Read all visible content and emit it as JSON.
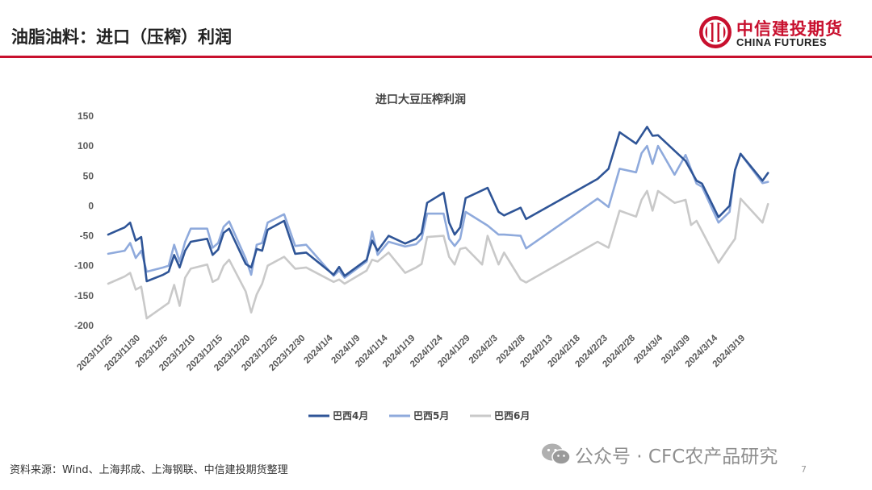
{
  "header": {
    "title": "油脂油料：进口（压榨）利润",
    "logo_cn": "中信建投期货",
    "logo_en": "CHINA FUTURES"
  },
  "footer": {
    "source": "资料来源：Wind、上海邦成、上海钢联、中信建投期货整理",
    "watermark": "公众号 · CFC农产品研究",
    "page_number": "7"
  },
  "colors": {
    "brand": "#c8102e",
    "s1": "#2f5597",
    "s2": "#8faadc",
    "s3": "#c9c9c9"
  },
  "chart_data": {
    "type": "line",
    "title": "进口大豆压榨利润",
    "xlabel": "",
    "ylabel": "",
    "ylim": [
      -200,
      150
    ],
    "yticks": [
      150,
      100,
      50,
      0,
      -50,
      -100,
      -150,
      -200
    ],
    "x_range": [
      "2023/11/25",
      "2024/3/20"
    ],
    "xticks": [
      "2023/11/25",
      "2023/11/30",
      "2023/12/5",
      "2023/12/10",
      "2023/12/15",
      "2023/12/20",
      "2023/12/25",
      "2023/12/30",
      "2024/1/4",
      "2024/1/9",
      "2024/1/14",
      "2024/1/19",
      "2024/1/24",
      "2024/1/29",
      "2024/2/3",
      "2024/2/8",
      "2024/2/13",
      "2024/2/18",
      "2024/2/23",
      "2024/2/28",
      "2024/3/4",
      "2024/3/9",
      "2024/3/14",
      "2024/3/19"
    ],
    "grid": false,
    "legend": "bottom-center",
    "series": [
      {
        "name": "巴西4月",
        "color": "#2f5597",
        "points": [
          [
            "2023/11/25",
            -48
          ],
          [
            "2023/11/27",
            -40
          ],
          [
            "2023/11/28",
            -36
          ],
          [
            "2023/11/29",
            -28
          ],
          [
            "2023/11/30",
            -58
          ],
          [
            "2023/12/1",
            -52
          ],
          [
            "2023/12/2",
            -126
          ],
          [
            "2023/12/5",
            -115
          ],
          [
            "2023/12/6",
            -110
          ],
          [
            "2023/12/7",
            -82
          ],
          [
            "2023/12/8",
            -103
          ],
          [
            "2023/12/9",
            -75
          ],
          [
            "2023/12/10",
            -60
          ],
          [
            "2023/12/13",
            -55
          ],
          [
            "2023/12/14",
            -82
          ],
          [
            "2023/12/15",
            -73
          ],
          [
            "2023/12/16",
            -45
          ],
          [
            "2023/12/17",
            -38
          ],
          [
            "2023/12/20",
            -97
          ],
          [
            "2023/12/21",
            -103
          ],
          [
            "2023/12/22",
            -72
          ],
          [
            "2023/12/23",
            -75
          ],
          [
            "2023/12/24",
            -40
          ],
          [
            "2023/12/27",
            -25
          ],
          [
            "2023/12/29",
            -80
          ],
          [
            "2023/12/31",
            -78
          ],
          [
            "2024/1/5",
            -115
          ],
          [
            "2024/1/6",
            -102
          ],
          [
            "2024/1/7",
            -117
          ],
          [
            "2024/1/11",
            -90
          ],
          [
            "2024/1/12",
            -58
          ],
          [
            "2024/1/13",
            -75
          ],
          [
            "2024/1/15",
            -50
          ],
          [
            "2024/1/18",
            -63
          ],
          [
            "2024/1/20",
            -55
          ],
          [
            "2024/1/21",
            -45
          ],
          [
            "2024/1/22",
            5
          ],
          [
            "2024/1/25",
            22
          ],
          [
            "2024/1/26",
            -28
          ],
          [
            "2024/1/27",
            -48
          ],
          [
            "2024/1/28",
            -36
          ],
          [
            "2024/1/29",
            13
          ],
          [
            "2024/2/2",
            30
          ],
          [
            "2024/2/4",
            -10
          ],
          [
            "2024/2/5",
            -16
          ],
          [
            "2024/2/8",
            -3
          ],
          [
            "2024/2/9",
            -22
          ],
          [
            "2024/2/22",
            45
          ],
          [
            "2024/2/24",
            62
          ],
          [
            "2024/2/26",
            123
          ],
          [
            "2024/2/29",
            104
          ],
          [
            "2024/3/2",
            132
          ],
          [
            "2024/3/3",
            117
          ],
          [
            "2024/3/4",
            118
          ],
          [
            "2024/3/7",
            92
          ],
          [
            "2024/3/9",
            75
          ],
          [
            "2024/3/11",
            42
          ],
          [
            "2024/3/12",
            37
          ],
          [
            "2024/3/15",
            -19
          ],
          [
            "2024/3/17",
            0
          ],
          [
            "2024/3/18",
            60
          ],
          [
            "2024/3/19",
            87
          ],
          [
            "2024/3/23",
            42
          ],
          [
            "2024/3/24",
            55
          ]
        ]
      },
      {
        "name": "巴西5月",
        "color": "#8faadc",
        "points": [
          [
            "2023/11/25",
            -80
          ],
          [
            "2023/11/28",
            -75
          ],
          [
            "2023/11/29",
            -62
          ],
          [
            "2023/11/30",
            -87
          ],
          [
            "2023/12/1",
            -75
          ],
          [
            "2023/12/2",
            -110
          ],
          [
            "2023/12/5",
            -103
          ],
          [
            "2023/12/6",
            -100
          ],
          [
            "2023/12/7",
            -65
          ],
          [
            "2023/12/8",
            -93
          ],
          [
            "2023/12/9",
            -60
          ],
          [
            "2023/12/10",
            -38
          ],
          [
            "2023/12/13",
            -38
          ],
          [
            "2023/12/14",
            -70
          ],
          [
            "2023/12/15",
            -62
          ],
          [
            "2023/12/16",
            -35
          ],
          [
            "2023/12/17",
            -26
          ],
          [
            "2023/12/20",
            -88
          ],
          [
            "2023/12/21",
            -115
          ],
          [
            "2023/12/22",
            -65
          ],
          [
            "2023/12/23",
            -62
          ],
          [
            "2023/12/24",
            -28
          ],
          [
            "2023/12/27",
            -14
          ],
          [
            "2023/12/29",
            -67
          ],
          [
            "2023/12/31",
            -65
          ],
          [
            "2024/1/5",
            -117
          ],
          [
            "2024/1/6",
            -108
          ],
          [
            "2024/1/7",
            -120
          ],
          [
            "2024/1/11",
            -93
          ],
          [
            "2024/1/12",
            -43
          ],
          [
            "2024/1/13",
            -82
          ],
          [
            "2024/1/15",
            -60
          ],
          [
            "2024/1/18",
            -68
          ],
          [
            "2024/1/20",
            -64
          ],
          [
            "2024/1/21",
            -55
          ],
          [
            "2024/1/22",
            -13
          ],
          [
            "2024/1/25",
            -13
          ],
          [
            "2024/1/26",
            -55
          ],
          [
            "2024/1/27",
            -67
          ],
          [
            "2024/1/28",
            -55
          ],
          [
            "2024/1/29",
            -10
          ],
          [
            "2024/2/2",
            -33
          ],
          [
            "2024/2/4",
            -48
          ],
          [
            "2024/2/5",
            -48
          ],
          [
            "2024/2/8",
            -50
          ],
          [
            "2024/2/9",
            -71
          ],
          [
            "2024/2/22",
            12
          ],
          [
            "2024/2/24",
            -2
          ],
          [
            "2024/2/26",
            62
          ],
          [
            "2024/2/29",
            56
          ],
          [
            "2024/3/1",
            88
          ],
          [
            "2024/3/2",
            100
          ],
          [
            "2024/3/3",
            70
          ],
          [
            "2024/3/4",
            100
          ],
          [
            "2024/3/7",
            52
          ],
          [
            "2024/3/9",
            85
          ],
          [
            "2024/3/11",
            37
          ],
          [
            "2024/3/12",
            32
          ],
          [
            "2024/3/15",
            -28
          ],
          [
            "2024/3/17",
            -10
          ],
          [
            "2024/3/18",
            60
          ],
          [
            "2024/3/19",
            87
          ],
          [
            "2024/3/23",
            38
          ],
          [
            "2024/3/24",
            40
          ]
        ]
      },
      {
        "name": "巴西6月",
        "color": "#c9c9c9",
        "points": [
          [
            "2023/11/25",
            -130
          ],
          [
            "2023/11/28",
            -118
          ],
          [
            "2023/11/29",
            -112
          ],
          [
            "2023/11/30",
            -140
          ],
          [
            "2023/12/1",
            -135
          ],
          [
            "2023/12/2",
            -188
          ],
          [
            "2023/12/6",
            -162
          ],
          [
            "2023/12/7",
            -132
          ],
          [
            "2023/12/8",
            -167
          ],
          [
            "2023/12/9",
            -120
          ],
          [
            "2023/12/10",
            -105
          ],
          [
            "2023/12/13",
            -98
          ],
          [
            "2023/12/14",
            -127
          ],
          [
            "2023/12/15",
            -122
          ],
          [
            "2023/12/16",
            -100
          ],
          [
            "2023/12/17",
            -90
          ],
          [
            "2023/12/20",
            -143
          ],
          [
            "2023/12/21",
            -178
          ],
          [
            "2023/12/22",
            -148
          ],
          [
            "2023/12/23",
            -130
          ],
          [
            "2023/12/24",
            -100
          ],
          [
            "2023/12/27",
            -85
          ],
          [
            "2023/12/29",
            -105
          ],
          [
            "2023/12/31",
            -103
          ],
          [
            "2024/1/5",
            -127
          ],
          [
            "2024/1/6",
            -123
          ],
          [
            "2024/1/7",
            -130
          ],
          [
            "2024/1/11",
            -108
          ],
          [
            "2024/1/12",
            -90
          ],
          [
            "2024/1/13",
            -93
          ],
          [
            "2024/1/15",
            -78
          ],
          [
            "2024/1/18",
            -112
          ],
          [
            "2024/1/20",
            -103
          ],
          [
            "2024/1/21",
            -97
          ],
          [
            "2024/1/22",
            -52
          ],
          [
            "2024/1/25",
            -50
          ],
          [
            "2024/1/26",
            -85
          ],
          [
            "2024/1/27",
            -98
          ],
          [
            "2024/1/28",
            -72
          ],
          [
            "2024/1/29",
            -70
          ],
          [
            "2024/2/1",
            -98
          ],
          [
            "2024/2/2",
            -50
          ],
          [
            "2024/2/4",
            -98
          ],
          [
            "2024/2/5",
            -78
          ],
          [
            "2024/2/8",
            -123
          ],
          [
            "2024/2/9",
            -128
          ],
          [
            "2024/2/22",
            -60
          ],
          [
            "2024/2/24",
            -70
          ],
          [
            "2024/2/26",
            -8
          ],
          [
            "2024/2/29",
            -18
          ],
          [
            "2024/3/1",
            10
          ],
          [
            "2024/3/2",
            25
          ],
          [
            "2024/3/3",
            -8
          ],
          [
            "2024/3/4",
            25
          ],
          [
            "2024/3/7",
            5
          ],
          [
            "2024/3/9",
            10
          ],
          [
            "2024/3/10",
            -32
          ],
          [
            "2024/3/11",
            -25
          ],
          [
            "2024/3/15",
            -95
          ],
          [
            "2024/3/17",
            -68
          ],
          [
            "2024/3/18",
            -55
          ],
          [
            "2024/3/19",
            12
          ],
          [
            "2024/3/23",
            -28
          ],
          [
            "2024/3/24",
            3
          ]
        ]
      }
    ]
  }
}
